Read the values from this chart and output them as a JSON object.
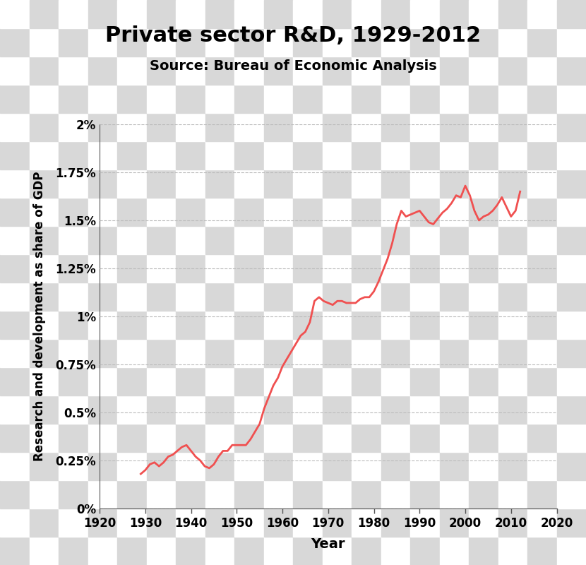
{
  "title": "Private sector R&D, 1929-2012",
  "subtitle": "Source: Bureau of Economic Analysis",
  "xlabel": "Year",
  "ylabel": "Research and development as share of GDP",
  "line_color": "#f05050",
  "line_width": 2.0,
  "bg_checker_light": "#d8d8d8",
  "bg_checker_white": "#ffffff",
  "xlim": [
    1920,
    2020
  ],
  "ylim": [
    0.0,
    0.02
  ],
  "xticks": [
    1920,
    1930,
    1940,
    1950,
    1960,
    1970,
    1980,
    1990,
    2000,
    2010,
    2020
  ],
  "yticks": [
    0.0,
    0.0025,
    0.005,
    0.0075,
    0.01,
    0.0125,
    0.015,
    0.0175,
    0.02
  ],
  "ytick_labels": [
    "0%",
    "0.25%",
    "0.5%",
    "0.75%",
    "1%",
    "1.25%",
    "1.5%",
    "1.75%",
    "2%"
  ],
  "data": {
    "years": [
      1929,
      1930,
      1931,
      1932,
      1933,
      1934,
      1935,
      1936,
      1937,
      1938,
      1939,
      1940,
      1941,
      1942,
      1943,
      1944,
      1945,
      1946,
      1947,
      1948,
      1949,
      1950,
      1951,
      1952,
      1953,
      1954,
      1955,
      1956,
      1957,
      1958,
      1959,
      1960,
      1961,
      1962,
      1963,
      1964,
      1965,
      1966,
      1967,
      1968,
      1969,
      1970,
      1971,
      1972,
      1973,
      1974,
      1975,
      1976,
      1977,
      1978,
      1979,
      1980,
      1981,
      1982,
      1983,
      1984,
      1985,
      1986,
      1987,
      1988,
      1989,
      1990,
      1991,
      1992,
      1993,
      1994,
      1995,
      1996,
      1997,
      1998,
      1999,
      2000,
      2001,
      2002,
      2003,
      2004,
      2005,
      2006,
      2007,
      2008,
      2009,
      2010,
      2011,
      2012
    ],
    "values": [
      0.0018,
      0.002,
      0.0023,
      0.0024,
      0.0022,
      0.0024,
      0.0027,
      0.0028,
      0.003,
      0.0032,
      0.0033,
      0.003,
      0.0027,
      0.0025,
      0.0022,
      0.0021,
      0.0023,
      0.0027,
      0.003,
      0.003,
      0.0033,
      0.0033,
      0.0033,
      0.0033,
      0.0036,
      0.004,
      0.0044,
      0.0052,
      0.0058,
      0.0064,
      0.0068,
      0.0074,
      0.0078,
      0.0082,
      0.0086,
      0.009,
      0.0092,
      0.0097,
      0.0108,
      0.011,
      0.0108,
      0.0107,
      0.0106,
      0.0108,
      0.0108,
      0.0107,
      0.0107,
      0.0107,
      0.0109,
      0.011,
      0.011,
      0.0113,
      0.0118,
      0.0124,
      0.013,
      0.0138,
      0.0148,
      0.0155,
      0.0152,
      0.0153,
      0.0154,
      0.0155,
      0.0152,
      0.0149,
      0.0148,
      0.0151,
      0.0154,
      0.0156,
      0.0159,
      0.0163,
      0.0162,
      0.0168,
      0.0163,
      0.0155,
      0.015,
      0.0152,
      0.0153,
      0.0155,
      0.0158,
      0.0162,
      0.0157,
      0.0152,
      0.0155,
      0.0165
    ]
  }
}
